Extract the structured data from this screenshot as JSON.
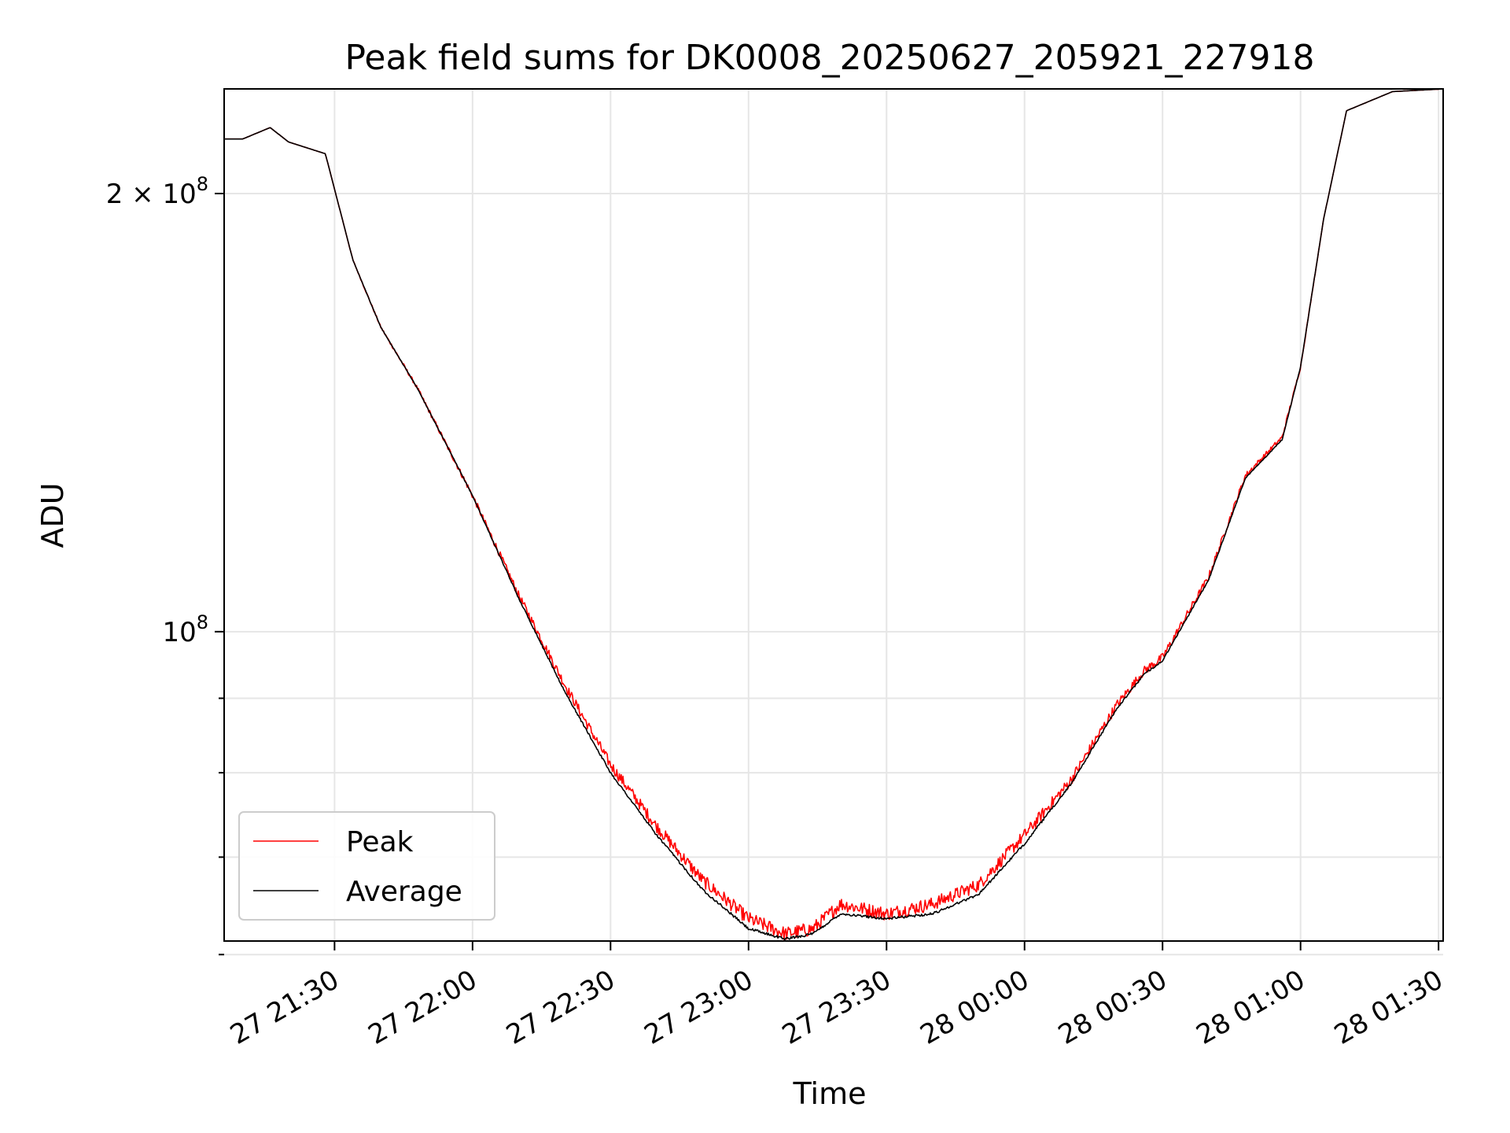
{
  "chart_data": {
    "type": "line",
    "title": "Peak field sums for DK0008_20250627_205921_227918",
    "xlabel": "Time",
    "ylabel": "ADU",
    "y_scale": "log",
    "x_range": [
      "2025-06-27 21:06",
      "2025-06-28 01:31"
    ],
    "ylim": [
      61300000,
      236000000
    ],
    "grid": true,
    "legend_position": "lower-left",
    "x_ticks": [
      {
        "label": "27 21:30",
        "time": "2025-06-27 21:30"
      },
      {
        "label": "27 22:00",
        "time": "2025-06-27 22:00"
      },
      {
        "label": "27 22:30",
        "time": "2025-06-27 22:30"
      },
      {
        "label": "27 23:00",
        "time": "2025-06-27 23:00"
      },
      {
        "label": "27 23:30",
        "time": "2025-06-27 23:30"
      },
      {
        "label": "28 00:00",
        "time": "2025-06-28 00:00"
      },
      {
        "label": "28 00:30",
        "time": "2025-06-28 00:30"
      },
      {
        "label": "28 01:00",
        "time": "2025-06-28 01:00"
      },
      {
        "label": "28 01:30",
        "time": "2025-06-28 01:30"
      }
    ],
    "y_major_ticks": [
      {
        "base": "2 × 10",
        "exp": "8",
        "value": 200000000
      },
      {
        "base": "10",
        "exp": "8",
        "value": 100000000
      }
    ],
    "y_minor_ticks": [
      60000000,
      70000000,
      80000000,
      90000000
    ],
    "series": [
      {
        "name": "Peak",
        "color": "#ff0000",
        "noise": 0.011,
        "x": [
          "2025-06-27 21:06",
          "2025-06-27 21:10",
          "2025-06-27 21:16",
          "2025-06-27 21:20",
          "2025-06-27 21:28",
          "2025-06-27 21:34",
          "2025-06-27 21:40",
          "2025-06-27 21:48",
          "2025-06-27 22:00",
          "2025-06-27 22:10",
          "2025-06-27 22:20",
          "2025-06-27 22:30",
          "2025-06-27 22:40",
          "2025-06-27 22:50",
          "2025-06-27 23:00",
          "2025-06-27 23:08",
          "2025-06-27 23:14",
          "2025-06-27 23:20",
          "2025-06-27 23:30",
          "2025-06-27 23:40",
          "2025-06-27 23:50",
          "2025-06-28 00:00",
          "2025-06-28 00:10",
          "2025-06-28 00:20",
          "2025-06-28 00:26",
          "2025-06-28 00:30",
          "2025-06-28 00:40",
          "2025-06-28 00:48",
          "2025-06-28 00:56",
          "2025-06-28 01:00",
          "2025-06-28 01:05",
          "2025-06-28 01:10",
          "2025-06-28 01:20",
          "2025-06-28 01:31"
        ],
        "y": [
          218000000,
          218000000,
          222000000,
          217000000,
          213000000,
          180000000,
          162000000,
          147000000,
          124000000,
          106000000,
          92000000,
          81000000,
          73500000,
          67500000,
          63500000,
          62000000,
          62500000,
          65000000,
          64000000,
          65000000,
          67000000,
          72500000,
          79000000,
          89000000,
          94000000,
          96000000,
          109000000,
          128000000,
          136000000,
          152000000,
          192000000,
          228000000,
          235000000,
          236000000
        ]
      },
      {
        "name": "Average",
        "color": "#000000",
        "noise": 0.002,
        "x": [
          "2025-06-27 21:06",
          "2025-06-27 21:10",
          "2025-06-27 21:16",
          "2025-06-27 21:20",
          "2025-06-27 21:28",
          "2025-06-27 21:34",
          "2025-06-27 21:40",
          "2025-06-27 21:48",
          "2025-06-27 22:00",
          "2025-06-27 22:10",
          "2025-06-27 22:20",
          "2025-06-27 22:30",
          "2025-06-27 22:40",
          "2025-06-27 22:50",
          "2025-06-27 23:00",
          "2025-06-27 23:08",
          "2025-06-27 23:14",
          "2025-06-27 23:20",
          "2025-06-27 23:30",
          "2025-06-27 23:40",
          "2025-06-27 23:50",
          "2025-06-28 00:00",
          "2025-06-28 00:10",
          "2025-06-28 00:20",
          "2025-06-28 00:26",
          "2025-06-28 00:30",
          "2025-06-28 00:40",
          "2025-06-28 00:48",
          "2025-06-28 00:56",
          "2025-06-28 01:00",
          "2025-06-28 01:05",
          "2025-06-28 01:10",
          "2025-06-28 01:20",
          "2025-06-28 01:31"
        ],
        "y": [
          218000000,
          218000000,
          222000000,
          217000000,
          213000000,
          180000000,
          162000000,
          147000000,
          124000000,
          105500000,
          91000000,
          80000000,
          72500000,
          66500000,
          62500000,
          61500000,
          62000000,
          64000000,
          63500000,
          64000000,
          66000000,
          71500000,
          78500000,
          88500000,
          93500000,
          95500000,
          108500000,
          127500000,
          135500000,
          152000000,
          192000000,
          228000000,
          235000000,
          236000000
        ]
      }
    ]
  }
}
